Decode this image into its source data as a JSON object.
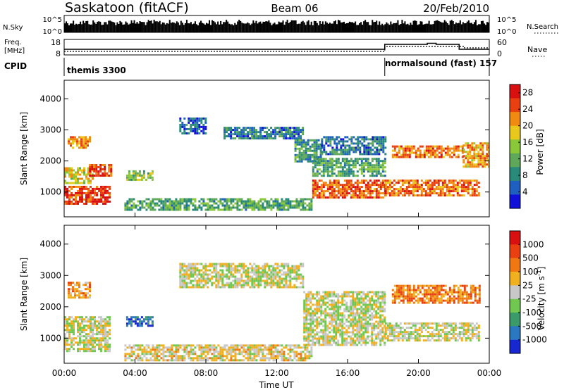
{
  "header": {
    "station": "Saskatoon (fitACF)",
    "beam": "Beam 06",
    "date": "20/Feb/2010"
  },
  "strips": {
    "nsky_label": "N.Sky",
    "nsky_top": "10^5",
    "nsky_bottom": "10^0",
    "nsearch_label": "N.Search",
    "nsearch_top": "10^5",
    "nsearch_bottom": "10^0",
    "freq_label": "Freq.",
    "freq_unit": "[MHz]",
    "freq_top": "18",
    "freq_bottom": "8",
    "nave_label": "Nave",
    "nave_top": "60",
    "nave_bottom": "0",
    "cpid_label": "CPID",
    "cpid_segments": [
      {
        "label": "themis 3300",
        "start_hour": 0,
        "end_hour": 18.1
      },
      {
        "label": "normalsound (fast)  157",
        "start_hour": 18.1,
        "end_hour": 24
      }
    ]
  },
  "chart_data": [
    {
      "type": "heatmap",
      "name": "power",
      "xlabel": "",
      "ylabel": "Slant Range [km]",
      "xlim": [
        0,
        24
      ],
      "ylim": [
        200,
        4600
      ],
      "y_ticks": [
        "1000",
        "2000",
        "3000",
        "4000"
      ],
      "colorbar": {
        "label": "Power [dB]",
        "ticks": [
          "4",
          "8",
          "12",
          "16",
          "20",
          "24",
          "28"
        ],
        "range": [
          0,
          30
        ],
        "colors": [
          "#1010d8",
          "#1f5fc0",
          "#2a8a7a",
          "#5fa85a",
          "#8ac83a",
          "#e8c81a",
          "#f08a10",
          "#e84010",
          "#d81010"
        ]
      },
      "bands": [
        {
          "start_hour": 0.0,
          "end_hour": 2.6,
          "range_km_low": 600,
          "range_km_high": 1200,
          "level": 0.9
        },
        {
          "start_hour": 0.0,
          "end_hour": 1.6,
          "range_km_low": 1300,
          "range_km_high": 1800,
          "level": 0.6
        },
        {
          "start_hour": 0.2,
          "end_hour": 1.4,
          "range_km_low": 2400,
          "range_km_high": 2800,
          "level": 0.75
        },
        {
          "start_hour": 1.4,
          "end_hour": 2.6,
          "range_km_low": 1500,
          "range_km_high": 1900,
          "level": 0.9
        },
        {
          "start_hour": 3.5,
          "end_hour": 5.0,
          "range_km_low": 1400,
          "range_km_high": 1700,
          "level": 0.45
        },
        {
          "start_hour": 3.4,
          "end_hour": 14.0,
          "range_km_low": 450,
          "range_km_high": 800,
          "level": 0.35
        },
        {
          "start_hour": 6.5,
          "end_hour": 8.0,
          "range_km_low": 2900,
          "range_km_high": 3400,
          "level": 0.15
        },
        {
          "start_hour": 9.0,
          "end_hour": 13.5,
          "range_km_low": 2700,
          "range_km_high": 3100,
          "level": 0.2
        },
        {
          "start_hour": 13.0,
          "end_hour": 14.5,
          "range_km_low": 2000,
          "range_km_high": 2700,
          "level": 0.3
        },
        {
          "start_hour": 14.0,
          "end_hour": 18.1,
          "range_km_low": 800,
          "range_km_high": 1400,
          "level": 0.85
        },
        {
          "start_hour": 14.0,
          "end_hour": 18.1,
          "range_km_low": 1500,
          "range_km_high": 2100,
          "level": 0.35
        },
        {
          "start_hour": 14.5,
          "end_hour": 18.1,
          "range_km_low": 2200,
          "range_km_high": 2800,
          "level": 0.2
        },
        {
          "start_hour": 18.1,
          "end_hour": 23.4,
          "range_km_low": 900,
          "range_km_high": 1400,
          "level": 0.8
        },
        {
          "start_hour": 18.5,
          "end_hour": 22.5,
          "range_km_low": 2100,
          "range_km_high": 2500,
          "level": 0.8
        },
        {
          "start_hour": 22.5,
          "end_hour": 24.0,
          "range_km_low": 1800,
          "range_km_high": 2600,
          "level": 0.7
        }
      ]
    },
    {
      "type": "heatmap",
      "name": "velocity",
      "xlabel": "Time UT",
      "ylabel": "Slant Range [km]",
      "xlim": [
        0,
        24
      ],
      "ylim": [
        200,
        4600
      ],
      "x_ticks": [
        "00:00",
        "04:00",
        "08:00",
        "12:00",
        "16:00",
        "20:00",
        "00:00"
      ],
      "y_ticks": [
        "1000",
        "2000",
        "3000",
        "4000"
      ],
      "colorbar": {
        "label": "Velocity [m s^-1]",
        "ticks": [
          "1000",
          "500",
          "100",
          "25",
          "-25",
          "-100",
          "-500",
          "-1000"
        ],
        "colors": [
          "#1828d0",
          "#2a78c0",
          "#3a9a6a",
          "#70c850",
          "#c8c8c8",
          "#f0b020",
          "#f07810",
          "#e84010",
          "#d81010"
        ]
      },
      "bands": [
        {
          "start_hour": 0.0,
          "end_hour": 2.6,
          "range_km_low": 600,
          "range_km_high": 1700,
          "level": 0.5
        },
        {
          "start_hour": 0.2,
          "end_hour": 1.4,
          "range_km_low": 2300,
          "range_km_high": 2800,
          "level": 0.7
        },
        {
          "start_hour": 3.5,
          "end_hour": 5.0,
          "range_km_low": 1400,
          "range_km_high": 1700,
          "level": 0.1
        },
        {
          "start_hour": 3.4,
          "end_hour": 14.0,
          "range_km_low": 300,
          "range_km_high": 800,
          "level": 0.55
        },
        {
          "start_hour": 6.5,
          "end_hour": 13.5,
          "range_km_low": 2600,
          "range_km_high": 3400,
          "level": 0.5
        },
        {
          "start_hour": 13.5,
          "end_hour": 18.1,
          "range_km_low": 800,
          "range_km_high": 2500,
          "level": 0.5
        },
        {
          "start_hour": 18.1,
          "end_hour": 23.4,
          "range_km_low": 900,
          "range_km_high": 1500,
          "level": 0.5
        },
        {
          "start_hour": 18.5,
          "end_hour": 23.5,
          "range_km_low": 2100,
          "range_km_high": 2700,
          "level": 0.75
        }
      ]
    }
  ]
}
